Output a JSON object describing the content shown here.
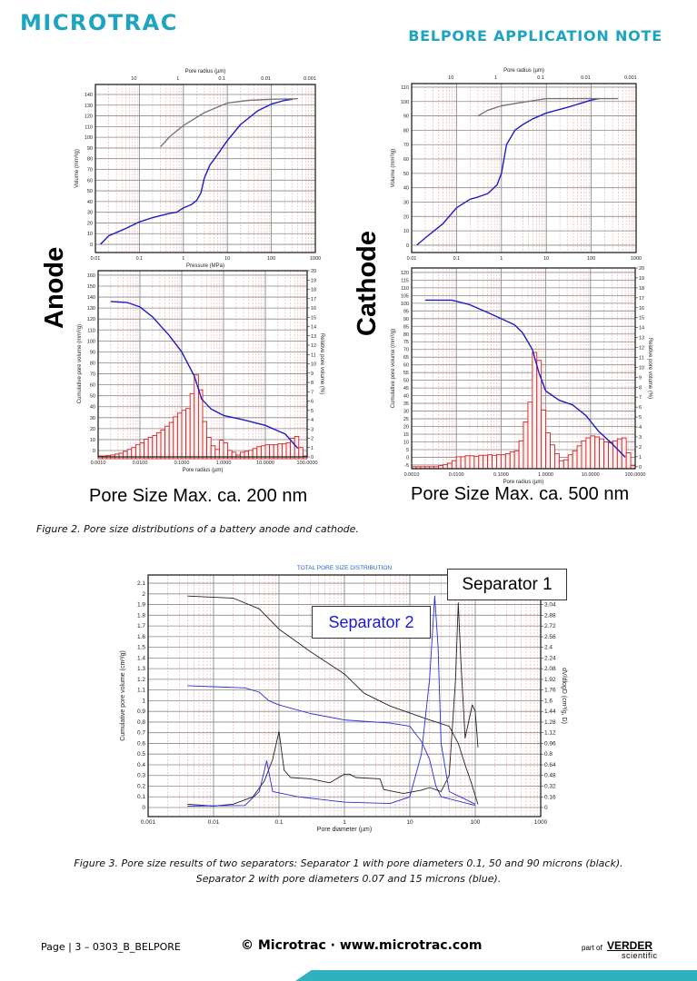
{
  "header": {
    "logo_text": "MICROTRAC",
    "doc_title": "BELPORE APPLICATION NOTE",
    "brand_color": "#1ea3c0"
  },
  "figure2": {
    "anode_label": "Anode",
    "cathode_label": "Cathode",
    "anode_pore_max": "Pore Size Max. ca. 200 nm",
    "cathode_pore_max": "Pore Size Max. ca. 500 nm",
    "caption": "Figure 2. Pore size distributions of a battery anode and cathode."
  },
  "figure3": {
    "separator1_label": "Separator 1",
    "separator2_label": "Separator 2",
    "caption_line1": "Figure 3. Pore size results of two separators: Separator 1 with pore diameters 0.1, 50 and 90 microns (black).",
    "caption_line2": "Separator 2 with pore diameters 0.07 and 15 microns (blue)."
  },
  "footer": {
    "page": "Page | 3 – 0303_B_BELPORE",
    "copyright": "© Microtrac · www.microtrac.com",
    "part_of": "part of",
    "verder": "VERDER",
    "scientific": "scientific",
    "accent_color": "#2fb2bd"
  },
  "chart_data": [
    {
      "id": "anode-intrusion-chart",
      "type": "line",
      "x_scale": "log",
      "xlim": [
        0.01,
        1000
      ],
      "xlabel": "Pressure (MPa)",
      "x_ticks": [
        "0.01",
        "0.1",
        "1",
        "10",
        "100",
        "1000"
      ],
      "x2label": "Pore radius (µm)",
      "x2_ticks": [
        "10",
        "1",
        "0.1",
        "0.01",
        "0.001"
      ],
      "ylabel": "Volume (mm³/g)",
      "ylim": [
        -7.6,
        149.3
      ],
      "y_ticks": [
        "0",
        "10",
        "20",
        "30",
        "40",
        "50",
        "60",
        "70",
        "80",
        "90",
        "100",
        "110",
        "120",
        "130",
        "140"
      ],
      "grid": true,
      "series": [
        {
          "color": "#1c1cc8",
          "axis": "left",
          "points": [
            [
              0.013,
              0
            ],
            [
              0.02,
              8
            ],
            [
              0.05,
              15
            ],
            [
              0.1,
              21
            ],
            [
              0.2,
              25
            ],
            [
              0.5,
              29
            ],
            [
              0.7,
              30
            ],
            [
              1,
              34
            ],
            [
              1.5,
              37
            ],
            [
              2,
              41
            ],
            [
              2.5,
              48
            ],
            [
              3,
              62
            ],
            [
              4,
              74
            ],
            [
              6,
              84
            ],
            [
              10,
              97
            ],
            [
              20,
              112
            ],
            [
              50,
              125
            ],
            [
              100,
              131
            ],
            [
              200,
              134.5
            ],
            [
              300,
              135.5
            ]
          ]
        },
        {
          "color": "#777777",
          "axis": "left",
          "points": [
            [
              0.3,
              91
            ],
            [
              0.5,
              101
            ],
            [
              1,
              111
            ],
            [
              3,
              123
            ],
            [
              10,
              132
            ],
            [
              30,
              134.5
            ],
            [
              100,
              135.5
            ],
            [
              400,
              136
            ]
          ]
        }
      ]
    },
    {
      "id": "anode-distribution-chart",
      "type": "bar+line",
      "x_scale": "log",
      "xlim": [
        0.001,
        100
      ],
      "xlabel": "Pore radius (µm)",
      "x_ticks": [
        "0.0010",
        "0.0100",
        "0.1000",
        "1.0000",
        "10.0000",
        "100.0000"
      ],
      "ylabel": "Cumulative pore volume (mm³/g)",
      "ylim": [
        -5.8,
        164.1
      ],
      "y_ticks": [
        "0",
        "10",
        "20",
        "30",
        "40",
        "50",
        "60",
        "70",
        "80",
        "90",
        "100",
        "110",
        "120",
        "130",
        "140",
        "150",
        "160"
      ],
      "y2label": "Relative pore volume (%)",
      "y2lim": [
        0,
        20
      ],
      "y2_ticks": [
        "0",
        "1",
        "2",
        "3",
        "4",
        "5",
        "6",
        "7",
        "8",
        "9",
        "10",
        "11",
        "12",
        "13",
        "14",
        "15",
        "16",
        "17",
        "18",
        "19",
        "20"
      ],
      "grid": true,
      "bars": {
        "color": "#d42020",
        "axis": "right",
        "start": 0.001,
        "bins_per_decade": 10,
        "values": [
          0.1,
          0.1,
          0.15,
          0.2,
          0.3,
          0.4,
          0.6,
          0.8,
          1.0,
          1.3,
          1.5,
          1.9,
          2.1,
          2.3,
          2.6,
          2.9,
          3.3,
          3.7,
          4.3,
          4.7,
          5.0,
          5.2,
          6.8,
          8.8,
          7.2,
          3.8,
          2.1,
          1.2,
          0.8,
          1.8,
          1.5,
          0.7,
          0.5,
          0.2,
          0.5,
          0.6,
          0.7,
          0.9,
          1.1,
          1.2,
          1.3,
          1.3,
          1.3,
          1.4,
          1.4,
          1.5,
          2.0,
          2.2,
          1.0,
          0.1
        ]
      },
      "series": [
        {
          "color": "#1c1cc8",
          "axis": "left",
          "points": [
            [
              0.002,
              136
            ],
            [
              0.005,
              135
            ],
            [
              0.01,
              131
            ],
            [
              0.02,
              122
            ],
            [
              0.05,
              105
            ],
            [
              0.1,
              90
            ],
            [
              0.2,
              68
            ],
            [
              0.3,
              47
            ],
            [
              0.5,
              38
            ],
            [
              1,
              32
            ],
            [
              3,
              28
            ],
            [
              10,
              23
            ],
            [
              30,
              15
            ],
            [
              60,
              2
            ]
          ]
        }
      ]
    },
    {
      "id": "cathode-intrusion-chart",
      "type": "line",
      "x_scale": "log",
      "xlim": [
        0.01,
        1000
      ],
      "xlabel": "",
      "x_ticks": [
        "0.01",
        "0.1",
        "1",
        "10",
        "100",
        "1000"
      ],
      "x2label": "Pore radius (µm)",
      "x2_ticks": [
        "10",
        "1",
        "0.1",
        "0.01",
        "0.001"
      ],
      "ylabel": "Volume (mm³/g)",
      "ylim": [
        -5.1,
        112.5
      ],
      "y_ticks": [
        "0",
        "10",
        "20",
        "30",
        "40",
        "50",
        "60",
        "70",
        "80",
        "90",
        "100",
        "110"
      ],
      "grid": true,
      "series": [
        {
          "color": "#1c1cc8",
          "axis": "left",
          "points": [
            [
              0.013,
              0
            ],
            [
              0.02,
              5
            ],
            [
              0.05,
              15
            ],
            [
              0.1,
              26
            ],
            [
              0.2,
              32
            ],
            [
              0.3,
              33.5
            ],
            [
              0.5,
              36
            ],
            [
              0.8,
              42
            ],
            [
              1,
              50
            ],
            [
              1.3,
              70
            ],
            [
              2,
              80
            ],
            [
              3,
              84
            ],
            [
              5,
              88
            ],
            [
              10,
              92
            ],
            [
              30,
              96
            ],
            [
              100,
              101
            ],
            [
              150,
              102
            ]
          ]
        },
        {
          "color": "#777777",
          "axis": "left",
          "points": [
            [
              0.3,
              90
            ],
            [
              0.5,
              94
            ],
            [
              1,
              97
            ],
            [
              3,
              99.5
            ],
            [
              10,
              102
            ],
            [
              100,
              102
            ],
            [
              400,
              102
            ]
          ]
        }
      ]
    },
    {
      "id": "cathode-distribution-chart",
      "type": "bar+line",
      "x_scale": "log",
      "xlim": [
        0.001,
        100
      ],
      "xlabel": "Pore radius (µm)",
      "x_ticks": [
        "0.0010",
        "0.0100",
        "0.1000",
        "1.0000",
        "10.0000",
        "100.0000"
      ],
      "ylabel": "Cumulative pore volume (mm³/g)",
      "ylim": [
        -7.4,
        122.9
      ],
      "y_ticks": [
        "-5",
        "0",
        "5",
        "10",
        "15",
        "20",
        "25",
        "30",
        "35",
        "40",
        "45",
        "50",
        "55",
        "60",
        "65",
        "70",
        "75",
        "80",
        "85",
        "90",
        "95",
        "100",
        "105",
        "110",
        "115",
        "120"
      ],
      "y2label": "Relative pore volume (%)",
      "y2lim": [
        -0.2,
        20
      ],
      "y2_ticks": [
        "0",
        "1",
        "2",
        "3",
        "4",
        "5",
        "6",
        "7",
        "8",
        "9",
        "10",
        "11",
        "12",
        "13",
        "14",
        "15",
        "16",
        "17",
        "18",
        "19",
        "20"
      ],
      "grid": true,
      "bars": {
        "color": "#d42020",
        "axis": "right",
        "start": 0.001,
        "bins_per_decade": 10,
        "values": [
          0,
          0,
          0,
          0,
          0,
          0,
          0.1,
          0.2,
          0.35,
          0.6,
          1.0,
          1.0,
          1.1,
          1.1,
          1.05,
          1.15,
          1.15,
          1.2,
          1.15,
          1.2,
          1.2,
          1.3,
          1.5,
          1.6,
          2.6,
          4.5,
          6.5,
          11.5,
          10.7,
          5.7,
          3.4,
          2.2,
          1.3,
          0.6,
          0.7,
          1.2,
          1.6,
          2.1,
          2.6,
          2.9,
          3.1,
          3.0,
          2.8,
          2.5,
          2.4,
          2.6,
          2.8,
          2.9,
          1.4,
          0.1
        ]
      },
      "series": [
        {
          "color": "#1c1cc8",
          "axis": "left",
          "points": [
            [
              0.002,
              102
            ],
            [
              0.008,
              102
            ],
            [
              0.02,
              99
            ],
            [
              0.05,
              94
            ],
            [
              0.1,
              90
            ],
            [
              0.2,
              86
            ],
            [
              0.3,
              81
            ],
            [
              0.5,
              70
            ],
            [
              0.7,
              55
            ],
            [
              1,
              43
            ],
            [
              2,
              37
            ],
            [
              4,
              34
            ],
            [
              8,
              27
            ],
            [
              15,
              17
            ],
            [
              30,
              9
            ],
            [
              60,
              0
            ]
          ]
        }
      ]
    },
    {
      "id": "separator-chart",
      "type": "line",
      "title": "TOTAL PORE SIZE DISTRIBUTION",
      "x_scale": "log",
      "xlim": [
        0.001,
        1000
      ],
      "xlabel": "Pore diameter (µm)",
      "x_ticks": [
        "0.001",
        "0.01",
        "0.1",
        "1",
        "10",
        "100",
        "1000"
      ],
      "ylabel": "Cumulative pore volume (cm³/g)",
      "ylim": [
        -0.085,
        2.177
      ],
      "y_ticks": [
        "0",
        "0.1",
        "0.2",
        "0.3",
        "0.4",
        "0.5",
        "0.6",
        "0.7",
        "0.8",
        "0.9",
        "1",
        "1.1",
        "1.2",
        "1.3",
        "1.4",
        "1.5",
        "1.6",
        "1.7",
        "1.8",
        "1.9",
        "2",
        "2.1"
      ],
      "y2label": "dV/dlogD (cm³/g, D)",
      "y2lim": [
        -0.136,
        3.485
      ],
      "y2_ticks": [
        "0",
        "0.16",
        "0.32",
        "0.48",
        "0.64",
        "0.8",
        "0.96",
        "1.12",
        "1.28",
        "1.44",
        "1.6",
        "1.76",
        "1.92",
        "2.08",
        "2.24",
        "2.4",
        "2.56",
        "2.72",
        "2.88",
        "3.04"
      ],
      "grid": true,
      "series": [
        {
          "name": "Separator 1",
          "color": "#222222",
          "axis": "left",
          "points": [
            [
              0.004,
              1.98
            ],
            [
              0.02,
              1.96
            ],
            [
              0.05,
              1.86
            ],
            [
              0.1,
              1.67
            ],
            [
              0.3,
              1.46
            ],
            [
              1,
              1.25
            ],
            [
              2,
              1.07
            ],
            [
              5,
              0.95
            ],
            [
              20,
              0.82
            ],
            [
              40,
              0.76
            ],
            [
              55,
              0.6
            ],
            [
              70,
              0.4
            ],
            [
              85,
              0.25
            ],
            [
              110,
              0.03
            ]
          ]
        },
        {
          "name": "Separator 2",
          "color": "#2a2ae0",
          "axis": "left",
          "points": [
            [
              0.004,
              1.14
            ],
            [
              0.03,
              1.12
            ],
            [
              0.05,
              1.08
            ],
            [
              0.07,
              1.0
            ],
            [
              0.1,
              0.96
            ],
            [
              0.3,
              0.88
            ],
            [
              1,
              0.82
            ],
            [
              5,
              0.79
            ],
            [
              10,
              0.76
            ],
            [
              15,
              0.62
            ],
            [
              20,
              0.45
            ],
            [
              25,
              0.2
            ],
            [
              30,
              0.1
            ],
            [
              100,
              0.02
            ]
          ]
        },
        {
          "name": "Separator 1",
          "color": "#222222",
          "axis": "right",
          "points": [
            [
              0.004,
              0.05
            ],
            [
              0.01,
              0.02
            ],
            [
              0.02,
              0.05
            ],
            [
              0.04,
              0.16
            ],
            [
              0.06,
              0.4
            ],
            [
              0.08,
              0.72
            ],
            [
              0.1,
              1.14
            ],
            [
              0.12,
              0.56
            ],
            [
              0.15,
              0.45
            ],
            [
              0.3,
              0.43
            ],
            [
              0.6,
              0.37
            ],
            [
              1,
              0.5
            ],
            [
              1.2,
              0.5
            ],
            [
              1.5,
              0.45
            ],
            [
              3.5,
              0.43
            ],
            [
              4,
              0.27
            ],
            [
              8,
              0.21
            ],
            [
              15,
              0.26
            ],
            [
              20,
              0.3
            ],
            [
              30,
              0.24
            ],
            [
              40,
              0.48
            ],
            [
              50,
              1.92
            ],
            [
              55,
              3.07
            ],
            [
              60,
              2.24
            ],
            [
              70,
              1.04
            ],
            [
              90,
              1.54
            ],
            [
              100,
              1.44
            ],
            [
              110,
              0.9
            ]
          ]
        },
        {
          "name": "Separator 2",
          "color": "#2a2ae0",
          "axis": "right",
          "points": [
            [
              0.004,
              0.02
            ],
            [
              0.03,
              0.03
            ],
            [
              0.05,
              0.24
            ],
            [
              0.065,
              0.7
            ],
            [
              0.08,
              0.24
            ],
            [
              0.2,
              0.16
            ],
            [
              1,
              0.08
            ],
            [
              5,
              0.06
            ],
            [
              10,
              0.16
            ],
            [
              15,
              0.8
            ],
            [
              20,
              1.92
            ],
            [
              24,
              3.17
            ],
            [
              27,
              2.4
            ],
            [
              30,
              0.96
            ],
            [
              40,
              0.24
            ],
            [
              100,
              0.05
            ]
          ]
        }
      ]
    }
  ]
}
